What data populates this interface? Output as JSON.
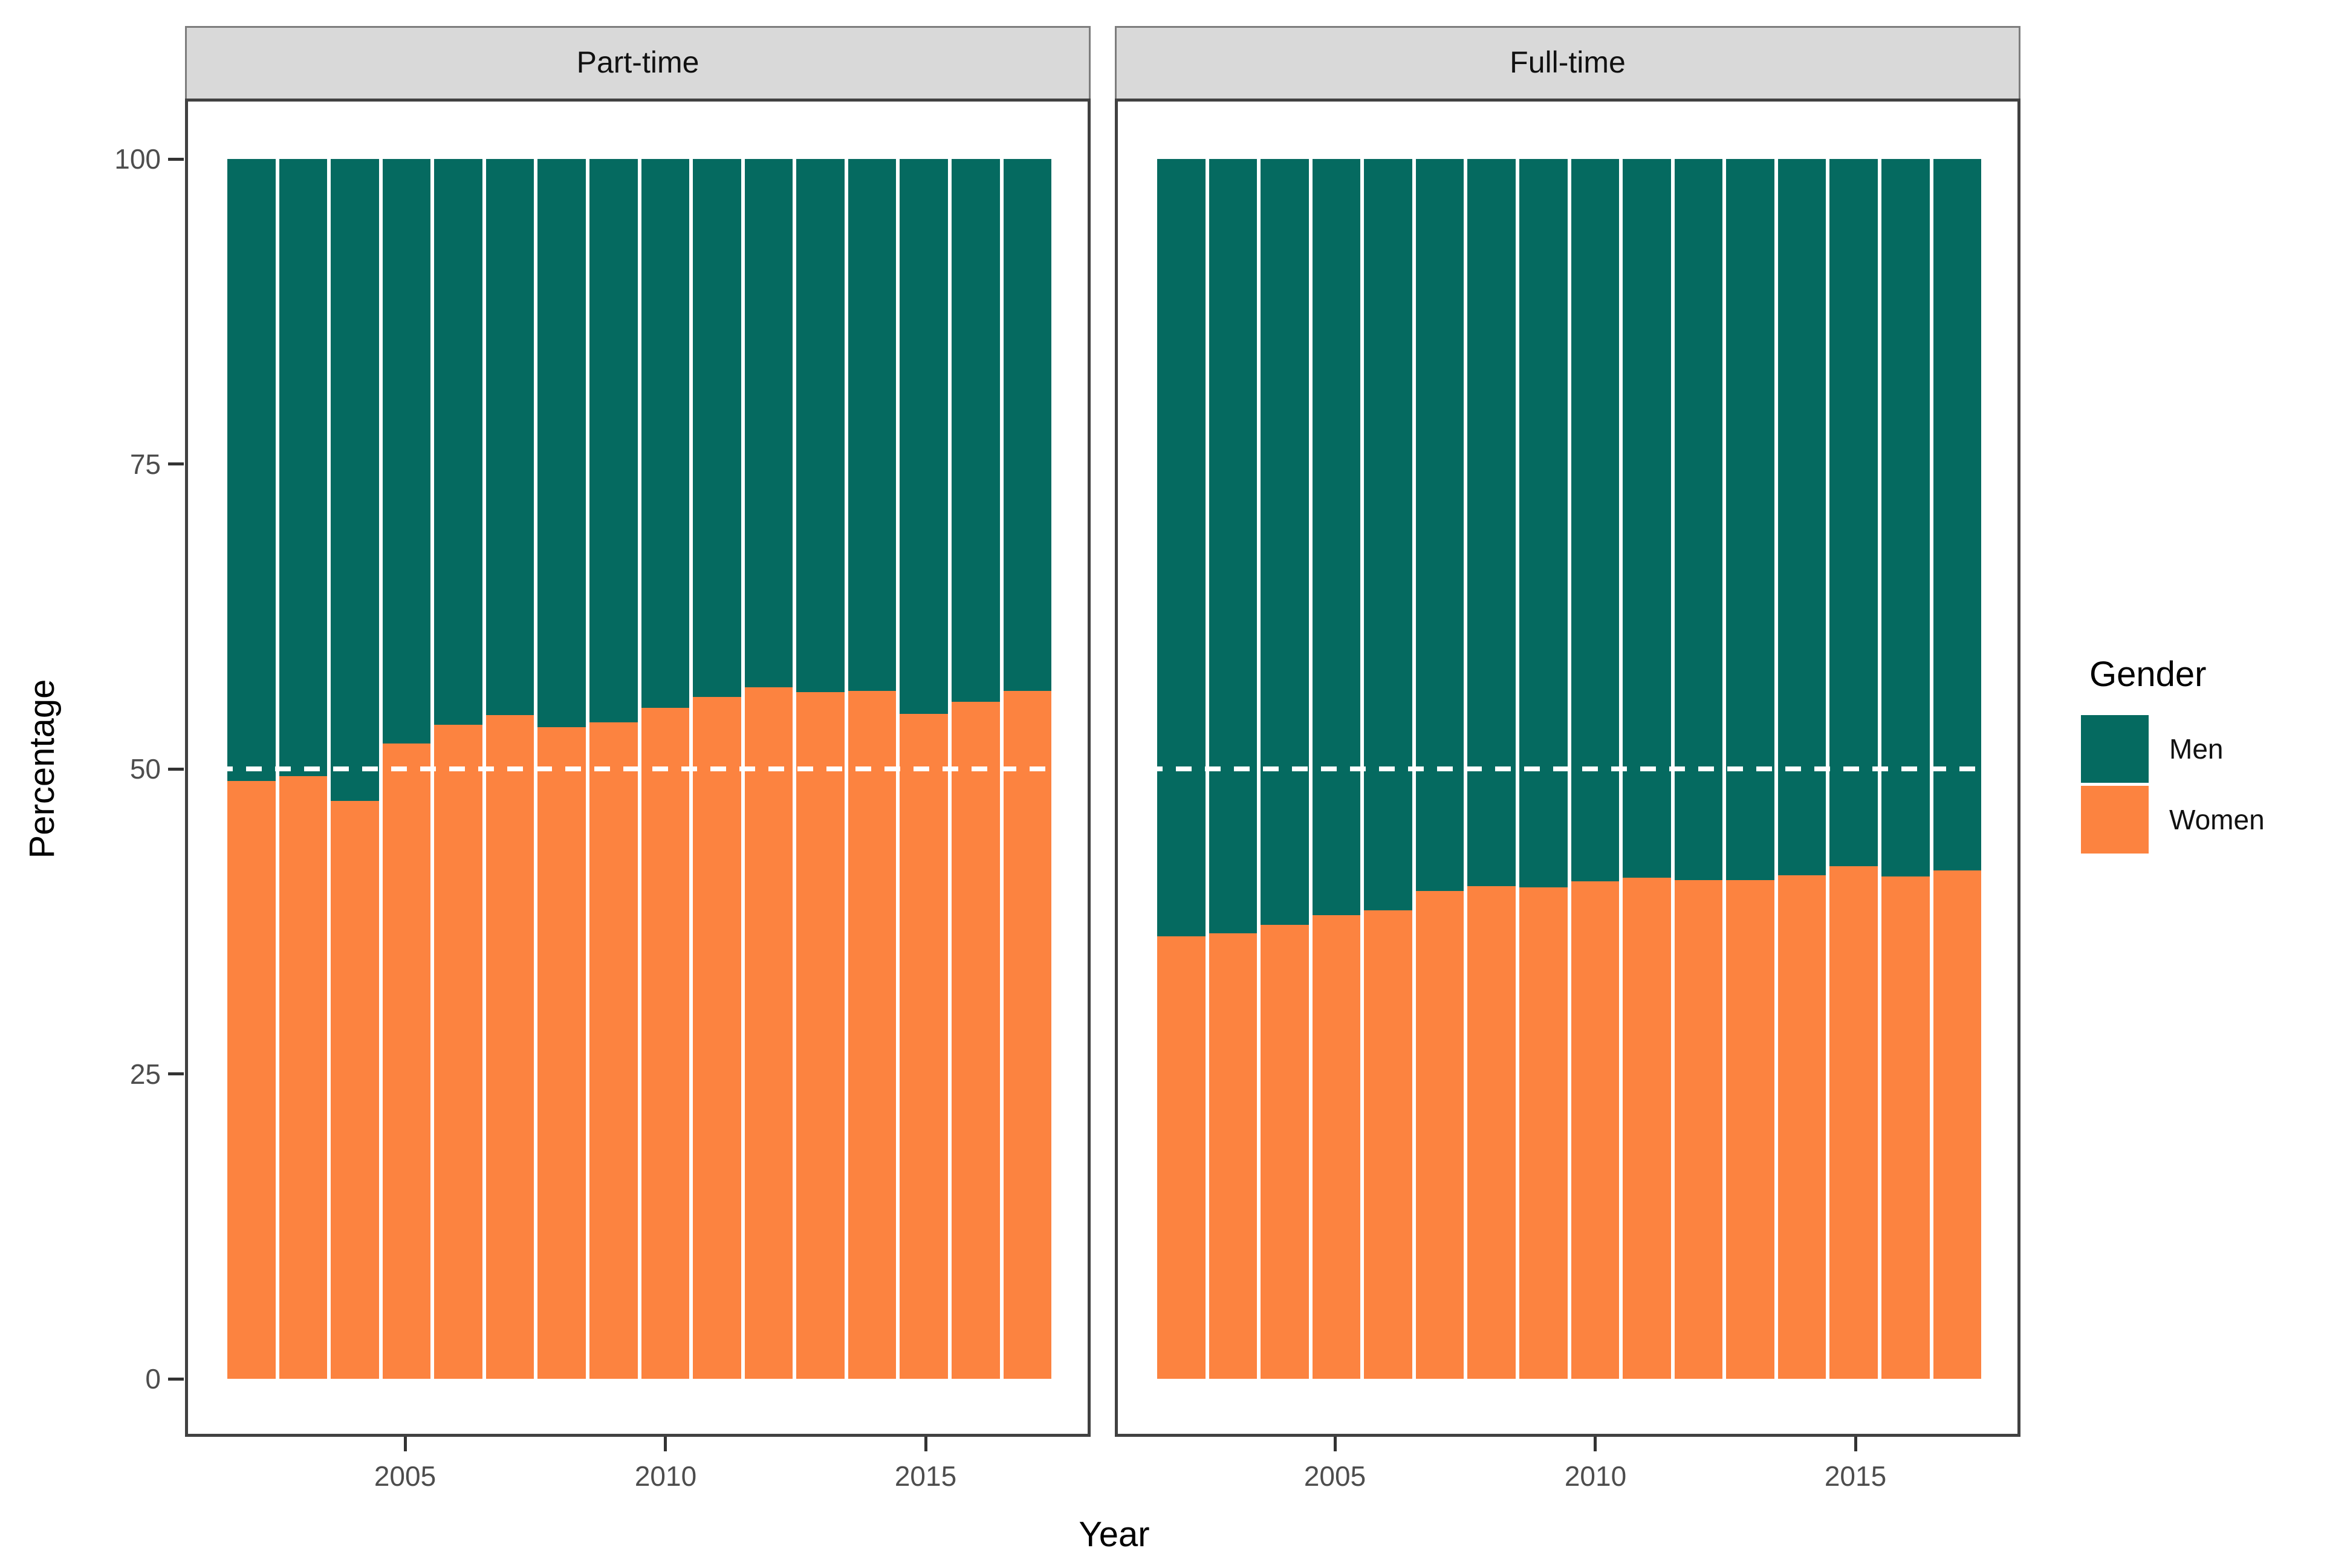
{
  "figure": {
    "y_axis_title": "Percentage",
    "x_axis_title": "Year",
    "legend": {
      "title": "Gender",
      "items": [
        {
          "label": "Men",
          "color": "#056a60"
        },
        {
          "label": "Women",
          "color": "#fc8340"
        }
      ]
    },
    "colors": {
      "men_teal": "#056a60",
      "women_orange": "#fc8340",
      "strip_fill": "#d9d9d9",
      "panel_border": "#414141",
      "tick_label_grey": "#4d4d4d",
      "reference_line_white": "#ffffff"
    }
  },
  "chart_data": {
    "type": "bar",
    "stacked": true,
    "stack_total": 100,
    "title": "",
    "xlabel": "Year",
    "ylabel": "Percentage",
    "ylim": [
      0,
      100
    ],
    "y_ticks": [
      0,
      25,
      50,
      75,
      100
    ],
    "x_ticks": [
      2005,
      2010,
      2015
    ],
    "grid": false,
    "legend_position": "right",
    "reference_line": {
      "y": 50,
      "style": "dashed",
      "color": "#ffffff"
    },
    "categories": [
      2002,
      2003,
      2004,
      2005,
      2006,
      2007,
      2008,
      2009,
      2010,
      2011,
      2012,
      2013,
      2014,
      2015,
      2016,
      2017
    ],
    "facets": [
      {
        "label": "Part-time",
        "series": [
          {
            "name": "Women",
            "color": "#fc8340",
            "values": [
              49.0,
              49.4,
              47.4,
              52.1,
              53.6,
              54.4,
              53.4,
              53.8,
              55.0,
              55.9,
              56.7,
              56.3,
              56.4,
              54.5,
              55.5,
              56.4
            ]
          },
          {
            "name": "Men",
            "color": "#056a60",
            "values": [
              51.0,
              50.6,
              52.6,
              47.9,
              46.4,
              45.6,
              46.6,
              46.2,
              45.0,
              44.1,
              43.3,
              43.7,
              43.6,
              45.5,
              44.5,
              43.6
            ]
          }
        ]
      },
      {
        "label": "Full-time",
        "series": [
          {
            "name": "Women",
            "color": "#fc8340",
            "values": [
              36.3,
              36.5,
              37.2,
              38.0,
              38.4,
              40.0,
              40.4,
              40.3,
              40.8,
              41.1,
              40.9,
              40.9,
              41.3,
              42.0,
              41.2,
              41.7
            ]
          },
          {
            "name": "Men",
            "color": "#056a60",
            "values": [
              63.7,
              63.5,
              62.8,
              62.0,
              61.6,
              60.0,
              59.6,
              59.7,
              59.2,
              58.9,
              59.1,
              59.1,
              58.7,
              58.0,
              58.8,
              58.3
            ]
          }
        ]
      }
    ]
  }
}
